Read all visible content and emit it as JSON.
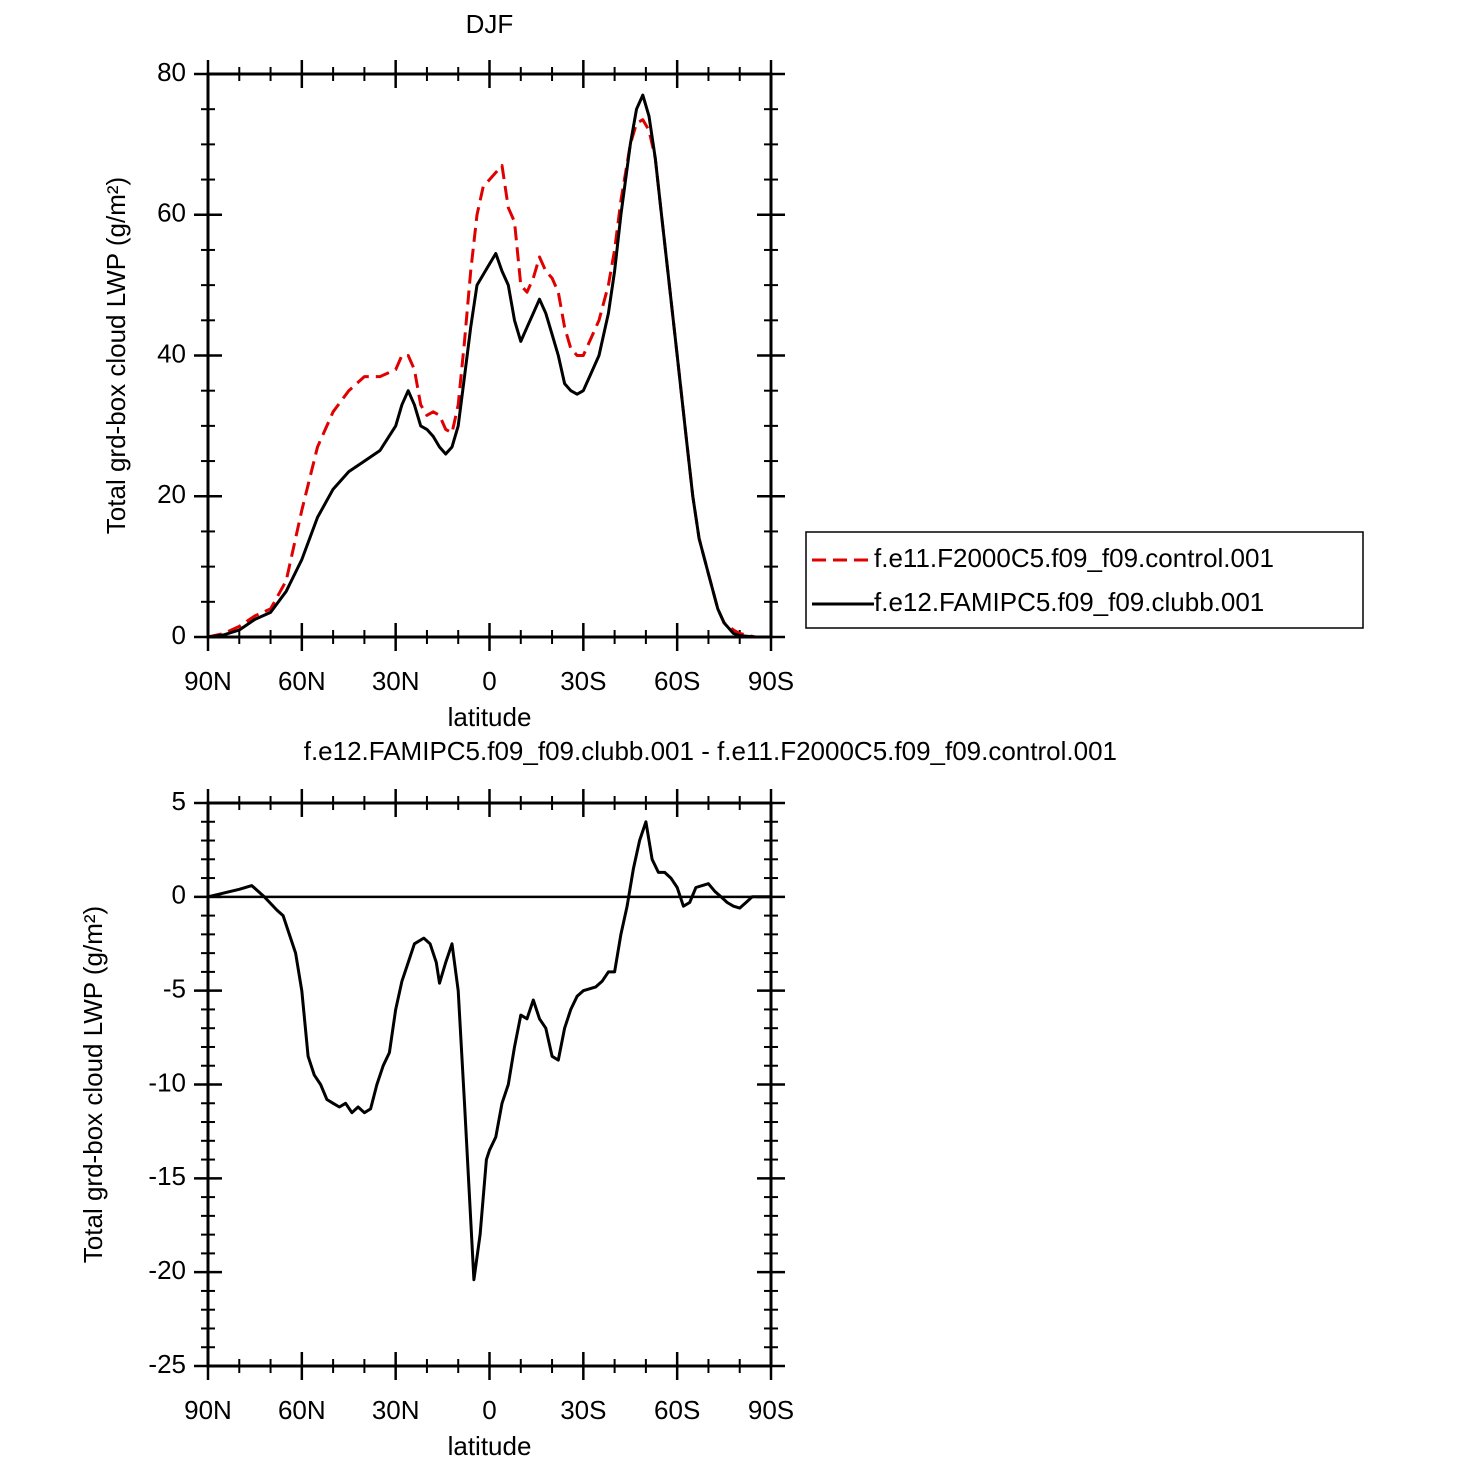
{
  "chart_data": [
    {
      "type": "line",
      "title": "DJF",
      "xlabel": "latitude",
      "ylabel": "Total grd-box cloud LWP (g/m²)",
      "x": [
        90,
        85,
        80,
        75,
        70,
        65,
        60,
        55,
        50,
        45,
        40,
        35,
        30,
        28,
        26,
        24,
        22,
        20,
        18,
        16,
        14,
        12,
        10,
        8,
        6,
        4,
        2,
        0,
        -2,
        -4,
        -6,
        -8,
        -10,
        -12,
        -14,
        -16,
        -18,
        -20,
        -22,
        -24,
        -26,
        -28,
        -30,
        -32,
        -35,
        -38,
        -40,
        -42,
        -45,
        -47,
        -49,
        -51,
        -53,
        -55,
        -57,
        -60,
        -63,
        -65,
        -67,
        -70,
        -73,
        -75,
        -78,
        -80,
        -85,
        -90
      ],
      "series": [
        {
          "name": "f.e11.F2000C5.f09_f09.control.001",
          "color": "#e00000",
          "dash": true,
          "values": [
            0,
            0.5,
            1.5,
            3,
            4,
            8,
            18,
            27,
            32,
            35,
            37,
            37,
            38,
            40,
            40,
            38,
            33,
            31.5,
            32,
            31.5,
            29.5,
            29,
            33,
            42,
            52,
            60,
            64,
            65,
            66,
            67,
            61,
            59,
            50,
            49,
            51,
            54,
            52,
            51,
            49,
            44,
            41,
            40,
            40,
            42,
            45,
            50,
            55,
            62,
            70,
            73,
            73.5,
            72,
            68,
            60,
            52,
            40,
            28,
            20,
            14,
            9,
            4,
            2,
            1,
            0.5,
            0,
            0
          ]
        },
        {
          "name": "f.e12.FAMIPC5.f09_f09.clubb.001",
          "color": "#000000",
          "dash": false,
          "values": [
            0,
            0.3,
            1,
            2.5,
            3.5,
            6.5,
            11,
            17,
            21,
            23.5,
            25,
            26.5,
            30,
            33,
            35,
            33,
            30,
            29.5,
            28.5,
            27,
            26,
            27,
            30,
            37,
            44,
            50,
            51.5,
            53,
            54.5,
            52,
            50,
            45,
            42,
            44,
            46,
            48,
            46,
            43,
            40,
            36,
            35,
            34.5,
            35,
            37,
            40,
            46,
            52,
            60,
            70,
            75,
            77,
            74,
            68,
            60,
            52,
            40,
            28,
            20,
            14,
            9,
            4,
            2,
            0.5,
            0.2,
            0,
            0
          ]
        }
      ],
      "xlim": [
        90,
        -90
      ],
      "xticks": [
        {
          "value": 90,
          "label": "90N"
        },
        {
          "value": 60,
          "label": "60N"
        },
        {
          "value": 30,
          "label": "30N"
        },
        0,
        {
          "value": -30,
          "label": "30S"
        },
        {
          "value": -60,
          "label": "60S"
        },
        {
          "value": -90,
          "label": "90S"
        }
      ],
      "xminor": [
        80,
        70,
        50,
        40,
        20,
        10,
        -10,
        -20,
        -40,
        -50,
        -70,
        -80
      ],
      "ylim": [
        0,
        80
      ],
      "yticks": [
        0,
        20,
        40,
        60,
        80
      ],
      "yminor": [
        5,
        10,
        15,
        25,
        30,
        35,
        45,
        50,
        55,
        65,
        70,
        75
      ],
      "legend": "right"
    },
    {
      "type": "line",
      "title": "f.e12.FAMIPC5.f09_f09.clubb.001 - f.e11.F2000C5.f09_f09.control.001",
      "xlabel": "latitude",
      "ylabel": "Total grd-box cloud LWP (g/m²)",
      "x": [
        90,
        85,
        80,
        76,
        72,
        68,
        66,
        62,
        60,
        58,
        56,
        54,
        52,
        50,
        48,
        46,
        44,
        42,
        40,
        38,
        36,
        34,
        32,
        30,
        28,
        26,
        24,
        21,
        19,
        17,
        16,
        14,
        12,
        10,
        8,
        5,
        3,
        1,
        0,
        -2,
        -4,
        -6,
        -8,
        -10,
        -12,
        -14,
        -16,
        -18,
        -20,
        -22,
        -24,
        -26,
        -28,
        -30,
        -34,
        -36,
        -38,
        -40,
        -42,
        -44,
        -46,
        -48,
        -50,
        -52,
        -54,
        -56,
        -58,
        -60,
        -62,
        -64,
        -66,
        -68,
        -70,
        -72,
        -74,
        -76,
        -78,
        -80,
        -82,
        -84,
        -90
      ],
      "values": [
        0,
        0.2,
        0.4,
        0.6,
        0,
        -0.7,
        -1,
        -3,
        -5,
        -8.5,
        -9.5,
        -10,
        -10.8,
        -11,
        -11.2,
        -11,
        -11.5,
        -11.2,
        -11.5,
        -11.3,
        -10,
        -9,
        -8.3,
        -6,
        -4.5,
        -3.5,
        -2.5,
        -2.2,
        -2.5,
        -3.5,
        -4.6,
        -3.5,
        -2.5,
        -5,
        -11,
        -20.4,
        -18,
        -14,
        -13.5,
        -12.8,
        -11,
        -10,
        -8,
        -6.3,
        -6.5,
        -5.5,
        -6.5,
        -7,
        -8.5,
        -8.7,
        -7,
        -6,
        -5.3,
        -5,
        -4.8,
        -4.5,
        -4,
        -4,
        -2,
        -0.5,
        1.5,
        3,
        4,
        2,
        1.3,
        1.3,
        1,
        0.5,
        -0.5,
        -0.3,
        0.5,
        0.6,
        0.7,
        0.3,
        0,
        -0.3,
        -0.5,
        -0.6,
        -0.3,
        0,
        0
      ],
      "color": "#000000",
      "xlim": [
        90,
        -90
      ],
      "xticks": [
        {
          "value": 90,
          "label": "90N"
        },
        {
          "value": 60,
          "label": "60N"
        },
        {
          "value": 30,
          "label": "30N"
        },
        0,
        {
          "value": -30,
          "label": "30S"
        },
        {
          "value": -60,
          "label": "60S"
        },
        {
          "value": -90,
          "label": "90S"
        }
      ],
      "xminor": [
        80,
        70,
        50,
        40,
        20,
        10,
        -10,
        -20,
        -40,
        -50,
        -70,
        -80
      ],
      "ylim": [
        -25,
        5
      ],
      "yticks": [
        -25,
        -20,
        -15,
        -10,
        -5,
        0,
        5
      ],
      "yminor": [
        -24,
        -23,
        -22,
        -21,
        -19,
        -18,
        -17,
        -16,
        -14,
        -13,
        -12,
        -11,
        -9,
        -8,
        -7,
        -6,
        -4,
        -3,
        -2,
        -1,
        1,
        2,
        3,
        4
      ],
      "hline": 0
    }
  ]
}
